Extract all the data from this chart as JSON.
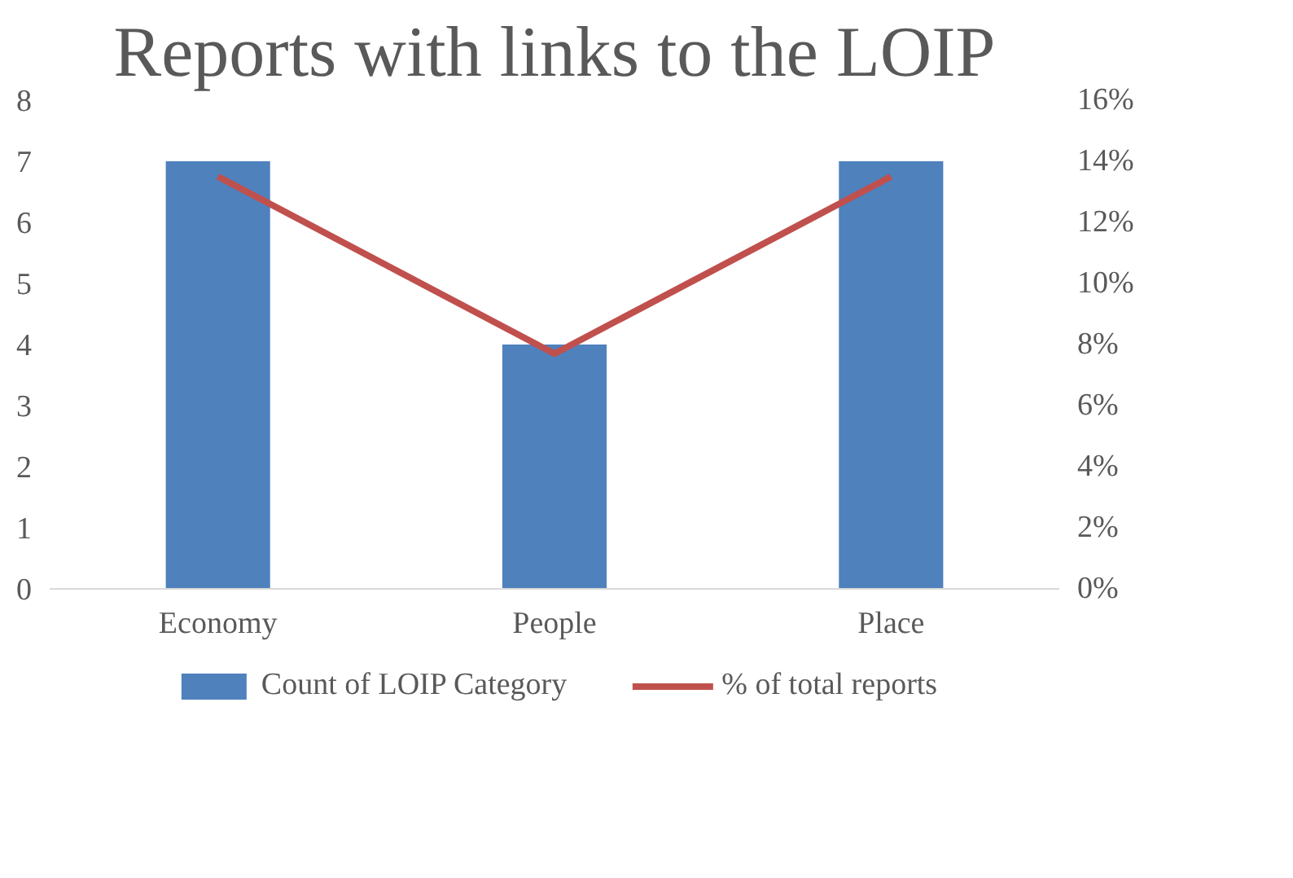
{
  "chart_data": {
    "type": "bar",
    "title": "Reports with links to the LOIP",
    "categories": [
      "Economy",
      "People",
      "Place"
    ],
    "series": [
      {
        "name": "Count of LOIP Category",
        "type": "bar",
        "color": "#4f81bd",
        "values": [
          7,
          4,
          7
        ]
      },
      {
        "name": "% of total reports",
        "type": "line",
        "axis": "y2",
        "color": "#c0504d",
        "values": [
          13.5,
          7.7,
          13.5
        ]
      }
    ],
    "ylim": [
      0,
      8
    ],
    "yticks": [
      0,
      1,
      2,
      3,
      4,
      5,
      6,
      7,
      8
    ],
    "y2lim": [
      0,
      16
    ],
    "y2ticks": [
      {
        "value": 0,
        "label": "0%"
      },
      {
        "value": 2,
        "label": "2%"
      },
      {
        "value": 4,
        "label": "4%"
      },
      {
        "value": 6,
        "label": "6%"
      },
      {
        "value": 8,
        "label": "8%"
      },
      {
        "value": 10,
        "label": "10%"
      },
      {
        "value": 12,
        "label": "12%"
      },
      {
        "value": 14,
        "label": "14%"
      },
      {
        "value": 16,
        "label": "16%"
      }
    ],
    "legend": "bottom"
  }
}
